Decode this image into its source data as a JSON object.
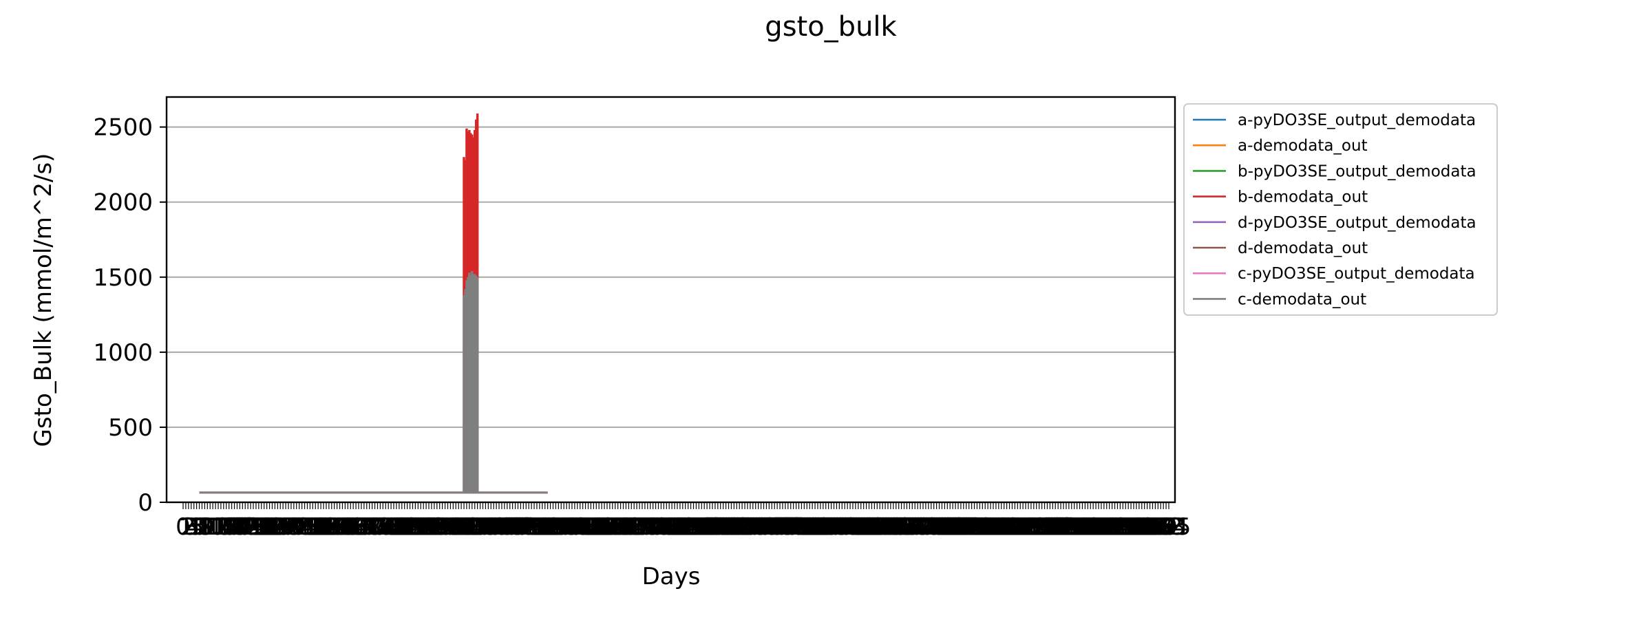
{
  "chart_data": {
    "type": "line",
    "title": "gsto_bulk",
    "xlabel": "Days",
    "ylabel": "Gsto_Bulk (mmol/m^2/s)",
    "xlim": [
      0,
      365
    ],
    "ylim": [
      0,
      2700
    ],
    "yticks": [
      0,
      500,
      1000,
      1500,
      2000,
      2500
    ],
    "x_tick_count": 366,
    "grid": "horizontal",
    "legend_position": "outside-right-top",
    "series": [
      {
        "name": "a-pyDO3SE_output_demodata",
        "color": "#1f77b4",
        "segments": [],
        "spikes": []
      },
      {
        "name": "a-demodata_out",
        "color": "#ff7f0e",
        "segments": [],
        "spikes": []
      },
      {
        "name": "b-pyDO3SE_output_demodata",
        "color": "#2ca02c",
        "segments": [],
        "spikes": []
      },
      {
        "name": "b-demodata_out",
        "color": "#d62728",
        "segments": [
          {
            "x": [
              6,
              135
            ],
            "y": [
              65,
              65
            ]
          }
        ],
        "spikes": [
          {
            "x": 104,
            "y": 2300
          },
          {
            "x": 104.5,
            "y": 2280
          },
          {
            "x": 105,
            "y": 2490
          },
          {
            "x": 105.5,
            "y": 2470
          },
          {
            "x": 106,
            "y": 2480
          },
          {
            "x": 106.5,
            "y": 2460
          },
          {
            "x": 107,
            "y": 2450
          },
          {
            "x": 107.5,
            "y": 2430
          },
          {
            "x": 108,
            "y": 2480
          },
          {
            "x": 108.5,
            "y": 2550
          },
          {
            "x": 109,
            "y": 2590
          }
        ]
      },
      {
        "name": "d-pyDO3SE_output_demodata",
        "color": "#9467bd",
        "segments": [],
        "spikes": []
      },
      {
        "name": "d-demodata_out",
        "color": "#8c564b",
        "segments": [],
        "spikes": []
      },
      {
        "name": "c-pyDO3SE_output_demodata",
        "color": "#e377c2",
        "segments": [],
        "spikes": []
      },
      {
        "name": "c-demodata_out",
        "color": "#7f7f7f",
        "segments": [
          {
            "x": [
              6,
              135
            ],
            "y": [
              65,
              65
            ]
          }
        ],
        "spikes": [
          {
            "x": 104,
            "y": 1380
          },
          {
            "x": 104.5,
            "y": 1420
          },
          {
            "x": 105,
            "y": 1480
          },
          {
            "x": 105.5,
            "y": 1500
          },
          {
            "x": 106,
            "y": 1530
          },
          {
            "x": 106.5,
            "y": 1510
          },
          {
            "x": 107,
            "y": 1540
          },
          {
            "x": 107.5,
            "y": 1520
          },
          {
            "x": 108,
            "y": 1520
          },
          {
            "x": 108.5,
            "y": 1510
          },
          {
            "x": 109,
            "y": 1500
          }
        ]
      }
    ]
  }
}
